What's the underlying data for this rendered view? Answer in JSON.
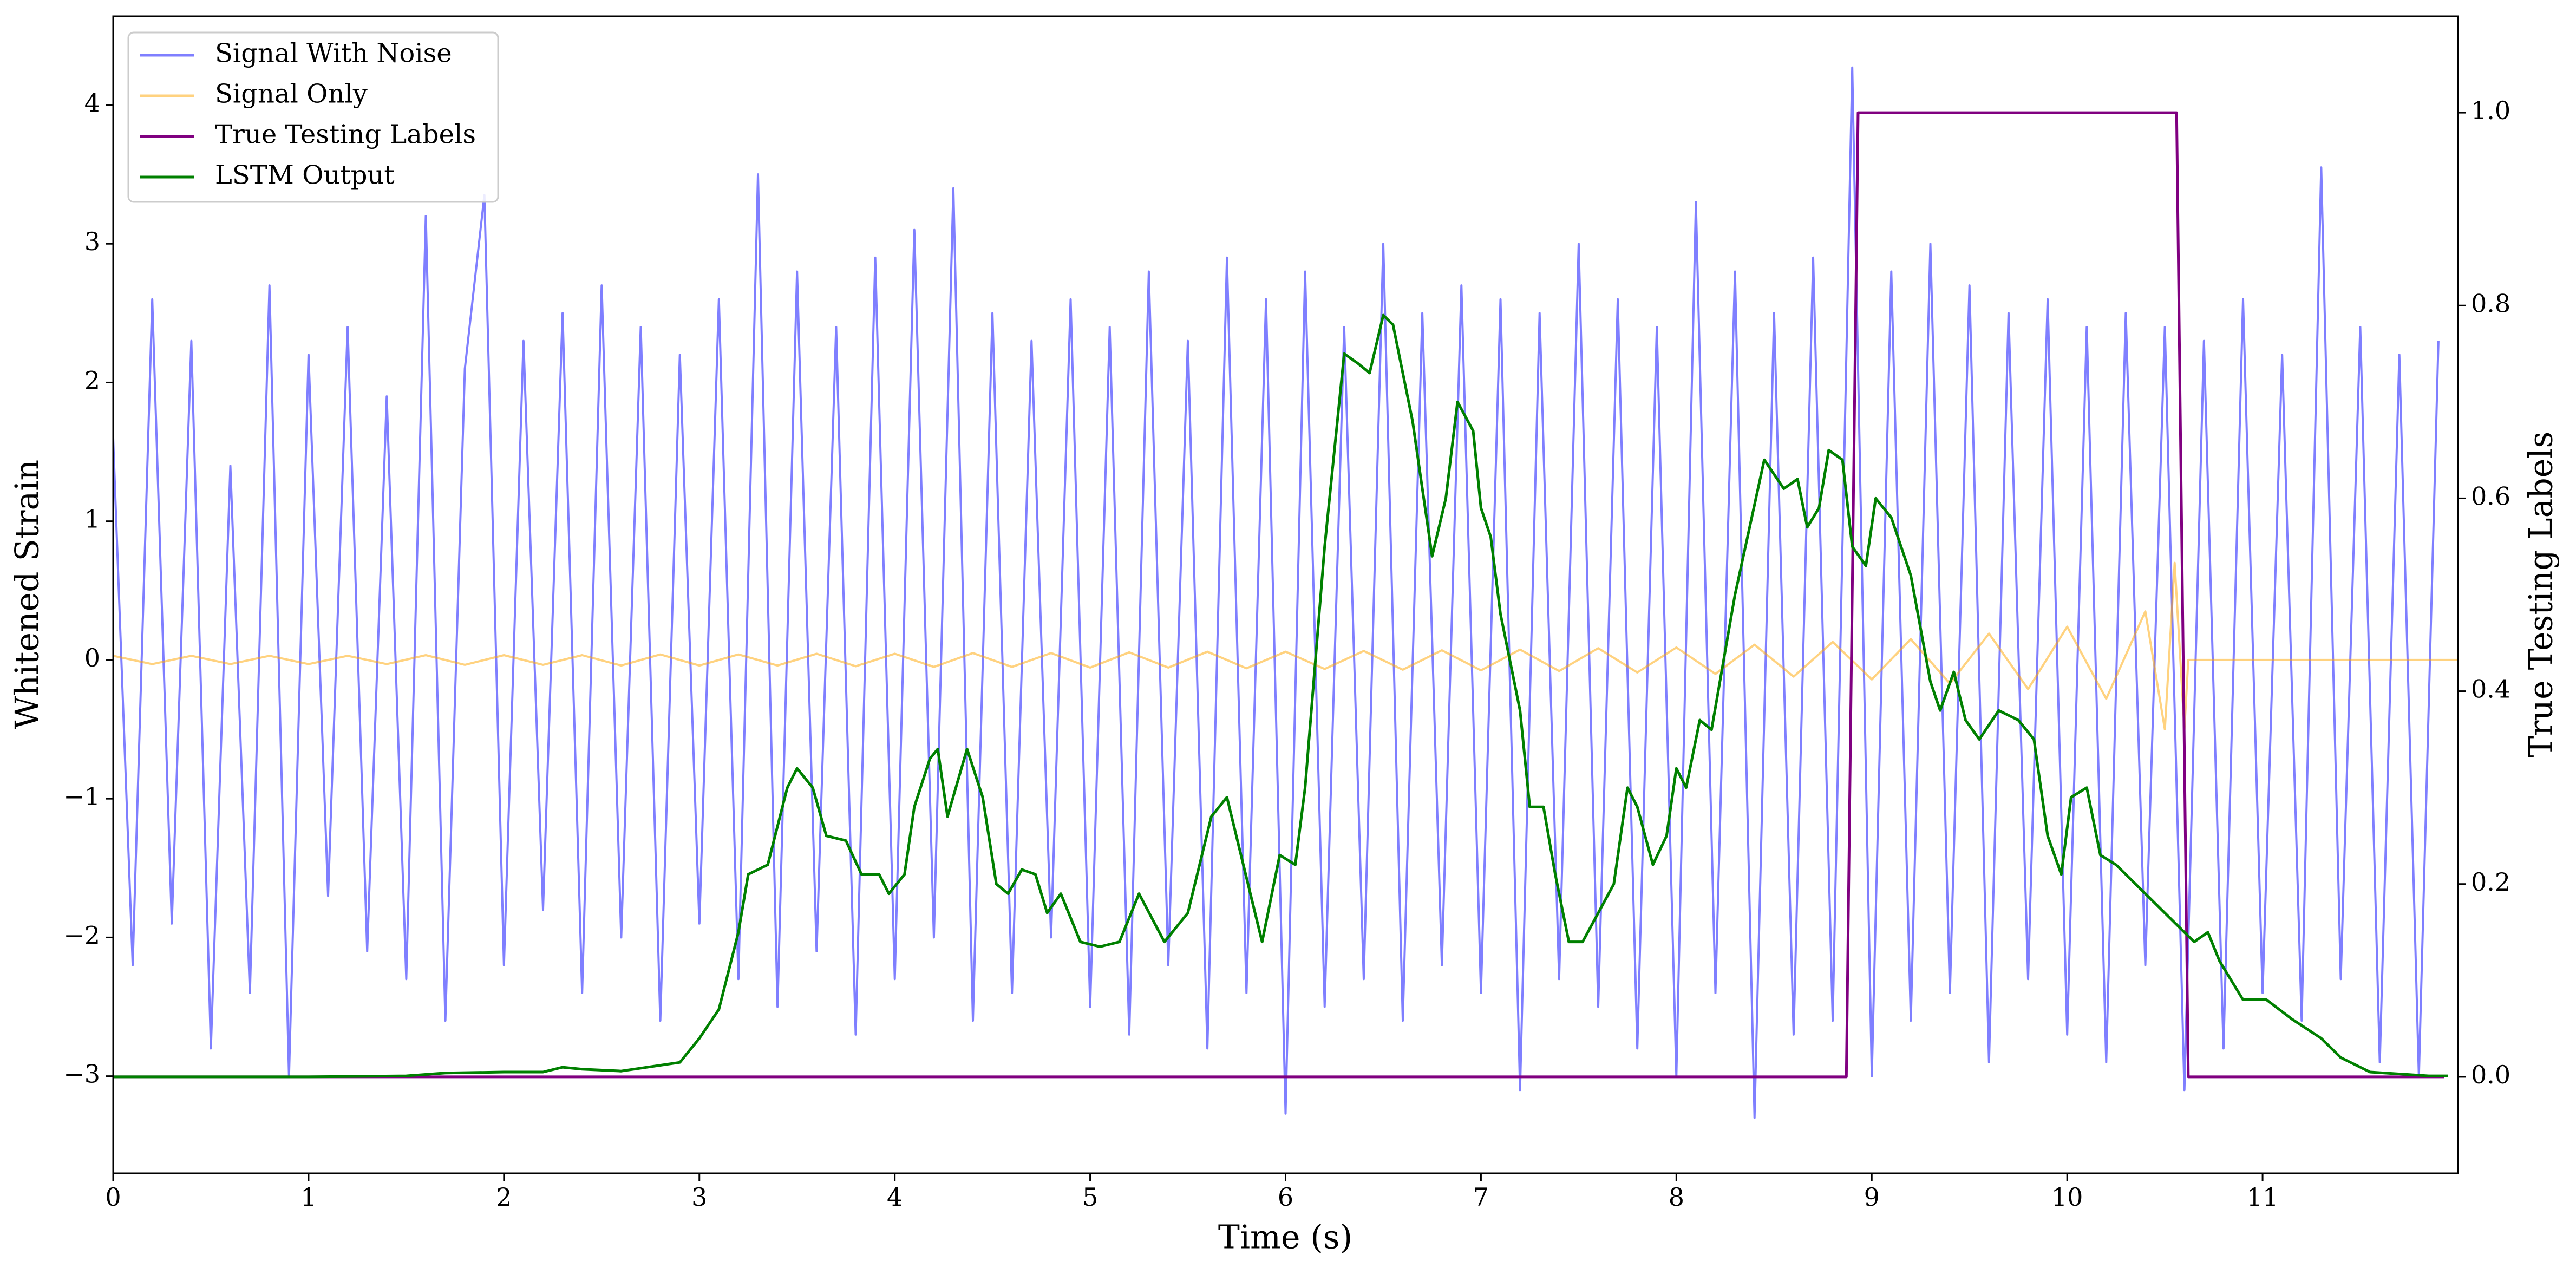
{
  "chart_data": {
    "type": "line",
    "xlabel": "Time (s)",
    "ylabel": "Whitened Strain",
    "y2label": "True Testing Labels",
    "xlim": [
      0,
      12
    ],
    "ylim": [
      -3.7,
      4.64
    ],
    "y2lim": [
      -0.1,
      1.1
    ],
    "xticks": [
      0,
      1,
      2,
      3,
      4,
      5,
      6,
      7,
      8,
      9,
      10,
      11
    ],
    "yticks": [
      {
        "value": -3,
        "label": "−3"
      },
      {
        "value": -2,
        "label": "−2"
      },
      {
        "value": -1,
        "label": "−1"
      },
      0,
      1,
      2,
      3,
      4
    ],
    "y2ticks": [
      {
        "value": 0,
        "label": "0.0"
      },
      0.2,
      0.4,
      0.6,
      0.8,
      {
        "value": 1,
        "label": "1.0"
      }
    ],
    "legend": "upper left",
    "series": [
      {
        "name": "Signal With Noise",
        "color": "#0000ff",
        "opacity": 0.5,
        "axis": "y",
        "x": [
          0,
          0.1,
          0.2,
          0.3,
          0.4,
          0.5,
          0.6,
          0.7,
          0.8,
          0.9,
          1,
          1.1,
          1.2,
          1.3,
          1.4,
          1.5,
          1.6,
          1.7,
          1.8,
          1.9,
          2,
          2.1,
          2.2,
          2.3,
          2.4,
          2.5,
          2.6,
          2.7,
          2.8,
          2.9,
          3,
          3.1,
          3.2,
          3.3,
          3.4,
          3.5,
          3.6,
          3.7,
          3.8,
          3.9,
          4,
          4.1,
          4.2,
          4.3,
          4.4,
          4.5,
          4.6,
          4.7,
          4.8,
          4.9,
          5,
          5.1,
          5.2,
          5.3,
          5.4,
          5.5,
          5.6,
          5.7,
          5.8,
          5.9,
          6,
          6.1,
          6.2,
          6.3,
          6.4,
          6.5,
          6.6,
          6.7,
          6.8,
          6.9,
          7,
          7.1,
          7.2,
          7.3,
          7.4,
          7.5,
          7.6,
          7.7,
          7.8,
          7.9,
          8,
          8.1,
          8.2,
          8.3,
          8.4,
          8.5,
          8.6,
          8.7,
          8.8,
          8.9,
          9,
          9.1,
          9.2,
          9.3,
          9.4,
          9.5,
          9.6,
          9.7,
          9.8,
          9.9,
          10,
          10.1,
          10.2,
          10.3,
          10.4,
          10.5,
          10.6,
          10.7,
          10.8,
          10.9,
          11,
          11.1,
          11.2,
          11.3,
          11.4,
          11.5,
          11.6,
          11.7,
          11.8,
          11.9
        ],
        "values": [
          1.6,
          -2.2,
          2.6,
          -1.9,
          2.3,
          -2.8,
          1.4,
          -2.4,
          2.7,
          -3.0,
          2.2,
          -1.7,
          2.4,
          -2.1,
          1.9,
          -2.3,
          3.2,
          -2.6,
          2.1,
          3.35,
          -2.2,
          2.3,
          -1.8,
          2.5,
          -2.4,
          2.7,
          -2.0,
          2.4,
          -2.6,
          2.2,
          -1.9,
          2.6,
          -2.3,
          3.5,
          -2.5,
          2.8,
          -2.1,
          2.4,
          -2.7,
          2.9,
          -2.3,
          3.1,
          -2.0,
          3.4,
          -2.6,
          2.5,
          -2.4,
          2.3,
          -2.0,
          2.6,
          -2.5,
          2.4,
          -2.7,
          2.8,
          -2.2,
          2.3,
          -2.8,
          2.9,
          -2.4,
          2.6,
          -3.27,
          2.8,
          -2.5,
          2.4,
          -2.3,
          3.0,
          -2.6,
          2.5,
          -2.2,
          2.7,
          -2.4,
          2.6,
          -3.1,
          2.5,
          -2.3,
          3.0,
          -2.5,
          2.6,
          -2.8,
          2.4,
          -3.0,
          3.3,
          -2.4,
          2.8,
          -3.3,
          2.5,
          -2.7,
          2.9,
          -2.6,
          4.27,
          -3.0,
          2.8,
          -2.6,
          3.0,
          -2.4,
          2.7,
          -2.9,
          2.5,
          -2.3,
          2.6,
          -2.7,
          2.4,
          -2.9,
          2.5,
          -2.2,
          2.4,
          -3.1,
          2.3,
          -2.8,
          2.6,
          -2.4,
          2.2,
          -2.6,
          3.55,
          -2.3,
          2.4,
          -2.9,
          2.2,
          -3.0,
          2.3
        ]
      },
      {
        "name": "Signal Only",
        "color": "#ffa500",
        "opacity": 0.5,
        "axis": "y",
        "x": [
          0,
          0.2,
          0.4,
          0.6,
          0.8,
          1,
          1.2,
          1.4,
          1.6,
          1.8,
          2,
          2.2,
          2.4,
          2.6,
          2.8,
          3,
          3.2,
          3.4,
          3.6,
          3.8,
          4,
          4.2,
          4.4,
          4.6,
          4.8,
          5,
          5.2,
          5.4,
          5.6,
          5.8,
          6,
          6.2,
          6.4,
          6.6,
          6.8,
          7,
          7.2,
          7.4,
          7.6,
          7.8,
          8,
          8.2,
          8.4,
          8.6,
          8.8,
          9,
          9.2,
          9.4,
          9.6,
          9.8,
          10,
          10.2,
          10.4,
          10.5,
          10.55,
          10.6,
          10.62,
          12
        ],
        "values": [
          0.03,
          -0.03,
          0.03,
          -0.03,
          0.03,
          -0.03,
          0.03,
          -0.03,
          0.035,
          -0.035,
          0.035,
          -0.035,
          0.035,
          -0.04,
          0.04,
          -0.04,
          0.04,
          -0.04,
          0.045,
          -0.045,
          0.045,
          -0.05,
          0.05,
          -0.05,
          0.05,
          -0.055,
          0.055,
          -0.055,
          0.06,
          -0.06,
          0.06,
          -0.065,
          0.065,
          -0.07,
          0.07,
          -0.075,
          0.075,
          -0.08,
          0.085,
          -0.09,
          0.09,
          -0.1,
          0.11,
          -0.12,
          0.13,
          -0.14,
          0.15,
          -0.17,
          0.19,
          -0.21,
          0.24,
          -0.28,
          0.35,
          -0.5,
          0.7,
          -0.5,
          0,
          0
        ]
      },
      {
        "name": "True Testing Labels",
        "color": "#800080",
        "opacity": 1,
        "axis": "y2",
        "x": [
          0,
          8.87,
          8.93,
          10.56,
          10.62,
          11.93
        ],
        "values": [
          0,
          0,
          1,
          1,
          0,
          0
        ]
      },
      {
        "name": "LSTM Output",
        "color": "#008000",
        "opacity": 1,
        "axis": "y2",
        "x": [
          0,
          1,
          1.5,
          1.7,
          2,
          2.2,
          2.3,
          2.4,
          2.6,
          2.9,
          3,
          3.1,
          3.2,
          3.25,
          3.35,
          3.45,
          3.5,
          3.58,
          3.65,
          3.75,
          3.83,
          3.92,
          3.97,
          4.05,
          4.1,
          4.18,
          4.22,
          4.27,
          4.37,
          4.45,
          4.52,
          4.58,
          4.65,
          4.72,
          4.78,
          4.85,
          4.95,
          5.05,
          5.15,
          5.25,
          5.38,
          5.5,
          5.62,
          5.7,
          5.82,
          5.88,
          5.97,
          6.05,
          6.1,
          6.2,
          6.3,
          6.37,
          6.43,
          6.5,
          6.55,
          6.65,
          6.75,
          6.82,
          6.88,
          6.96,
          7,
          7.05,
          7.1,
          7.2,
          7.25,
          7.32,
          7.38,
          7.45,
          7.52,
          7.6,
          7.68,
          7.75,
          7.8,
          7.88,
          7.95,
          8,
          8.05,
          8.12,
          8.18,
          8.3,
          8.45,
          8.55,
          8.62,
          8.67,
          8.73,
          8.78,
          8.85,
          8.9,
          8.97,
          9.02,
          9.1,
          9.2,
          9.3,
          9.35,
          9.42,
          9.48,
          9.55,
          9.65,
          9.75,
          9.83,
          9.9,
          9.97,
          10.02,
          10.1,
          10.17,
          10.25,
          10.35,
          10.5,
          10.6,
          10.65,
          10.72,
          10.78,
          10.9,
          11.02,
          11.15,
          11.3,
          11.4,
          11.55,
          11.85,
          11.95
        ],
        "values": [
          0,
          0,
          0.001,
          0.004,
          0.005,
          0.005,
          0.01,
          0.008,
          0.006,
          0.015,
          0.04,
          0.07,
          0.15,
          0.21,
          0.22,
          0.3,
          0.32,
          0.3,
          0.25,
          0.245,
          0.21,
          0.21,
          0.19,
          0.21,
          0.28,
          0.33,
          0.34,
          0.27,
          0.34,
          0.29,
          0.2,
          0.19,
          0.215,
          0.21,
          0.17,
          0.19,
          0.14,
          0.135,
          0.14,
          0.19,
          0.14,
          0.17,
          0.27,
          0.29,
          0.19,
          0.14,
          0.23,
          0.22,
          0.3,
          0.55,
          0.75,
          0.74,
          0.73,
          0.79,
          0.78,
          0.68,
          0.54,
          0.6,
          0.7,
          0.67,
          0.59,
          0.56,
          0.48,
          0.38,
          0.28,
          0.28,
          0.21,
          0.14,
          0.14,
          0.17,
          0.2,
          0.3,
          0.28,
          0.22,
          0.25,
          0.32,
          0.3,
          0.37,
          0.36,
          0.5,
          0.64,
          0.61,
          0.62,
          0.57,
          0.59,
          0.65,
          0.64,
          0.55,
          0.53,
          0.6,
          0.58,
          0.52,
          0.41,
          0.38,
          0.42,
          0.37,
          0.35,
          0.38,
          0.37,
          0.35,
          0.25,
          0.21,
          0.29,
          0.3,
          0.23,
          0.22,
          0.2,
          0.17,
          0.15,
          0.14,
          0.15,
          0.12,
          0.08,
          0.08,
          0.06,
          0.04,
          0.02,
          0.005,
          0.001,
          0.001
        ]
      }
    ]
  }
}
